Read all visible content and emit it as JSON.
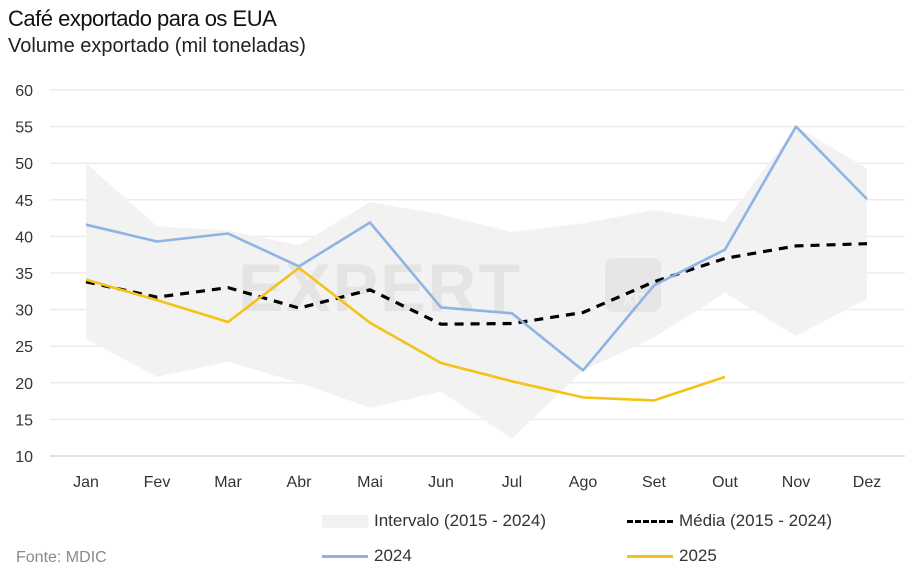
{
  "header": {
    "title": "Café exportado para os EUA",
    "subtitle": "Volume exportado (mil toneladas)"
  },
  "source": "Fonte: MDIC",
  "watermark": {
    "text": "EXPERT",
    "logo": "XP"
  },
  "legend": [
    {
      "key": "band",
      "label": "Intervalo (2015 - 2024)",
      "icon": "band-swatch-icon"
    },
    {
      "key": "avg",
      "label": "Média (2015 - 2024)",
      "icon": "dashed-line-icon"
    },
    {
      "key": "y2024",
      "label": "2024",
      "icon": "line-swatch-icon"
    },
    {
      "key": "y2025",
      "label": "2025",
      "icon": "line-swatch-icon"
    }
  ],
  "colors": {
    "band": "#f2f2f2",
    "avg": "#000000",
    "y2024": "#8fb4e3",
    "y2025": "#f5c218",
    "grid": "#ececec"
  },
  "chart_data": {
    "type": "line",
    "title": "Café exportado para os EUA",
    "subtitle": "Volume exportado (mil toneladas)",
    "xlabel": "",
    "ylabel": "",
    "ylim": [
      10,
      60
    ],
    "yticks": [
      10,
      15,
      20,
      25,
      30,
      35,
      40,
      45,
      50,
      55,
      60
    ],
    "grid": true,
    "legend_position": "bottom",
    "categories": [
      "Jan",
      "Fev",
      "Mar",
      "Abr",
      "Mai",
      "Jun",
      "Jul",
      "Ago",
      "Set",
      "Out",
      "Nov",
      "Dez"
    ],
    "band": {
      "name": "Intervalo (2015 - 2024)",
      "upper": [
        50.0,
        41.4,
        40.8,
        38.8,
        44.7,
        43.0,
        40.6,
        41.8,
        43.6,
        42.0,
        55.0,
        49.3
      ],
      "lower": [
        26.0,
        20.8,
        22.9,
        20.0,
        16.6,
        18.8,
        12.4,
        21.7,
        26.2,
        32.3,
        26.4,
        31.5
      ]
    },
    "series": [
      {
        "name": "Média (2015 - 2024)",
        "style": "dashed",
        "values": [
          33.8,
          31.7,
          33.0,
          30.2,
          32.7,
          28.0,
          28.1,
          29.6,
          33.8,
          37.0,
          38.7,
          39.0
        ]
      },
      {
        "name": "2024",
        "style": "solid",
        "values": [
          41.6,
          39.3,
          40.4,
          35.9,
          41.9,
          30.3,
          29.5,
          21.7,
          33.3,
          38.2,
          55.0,
          45.1
        ]
      },
      {
        "name": "2025",
        "style": "solid",
        "values": [
          34.1,
          31.3,
          28.3,
          35.7,
          28.2,
          22.7,
          20.2,
          18.0,
          17.6,
          20.8,
          null,
          null
        ]
      }
    ]
  }
}
